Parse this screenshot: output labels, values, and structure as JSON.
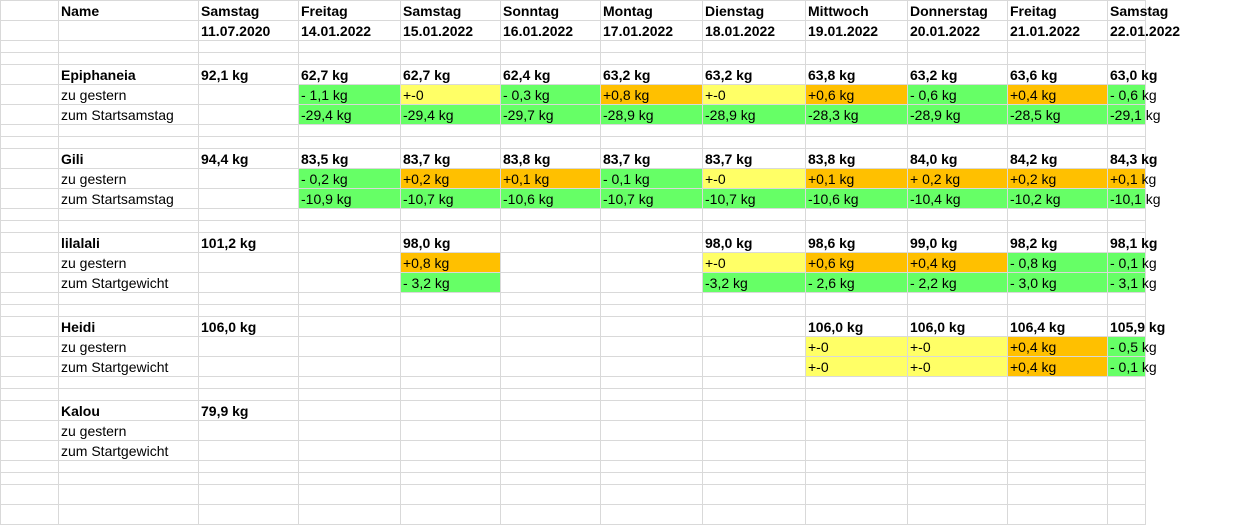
{
  "colors": {
    "green": "#66ff66",
    "yellow": "#ffff66",
    "orange": "#ffc000",
    "grid": "#d9d9d9"
  },
  "header": {
    "name_label": "Name",
    "days": [
      "Samstag",
      "Freitag",
      "Samstag",
      "Sonntag",
      "Montag",
      "Dienstag",
      "Mittwoch",
      "Donnerstag",
      "Freitag",
      "Samstag"
    ],
    "dates": [
      "11.07.2020",
      "14.01.2022",
      "15.01.2022",
      "16.01.2022",
      "17.01.2022",
      "18.01.2022",
      "19.01.2022",
      "20.01.2022",
      "21.01.2022",
      "22.01.2022"
    ]
  },
  "persons": [
    {
      "name": "Epiphaneia",
      "weights": [
        "92,1 kg",
        "62,7 kg",
        "62,7 kg",
        "62,4 kg",
        "63,2 kg",
        "63,2 kg",
        "63,8 kg",
        "63,2 kg",
        "63,6 kg",
        "63,0 kg"
      ],
      "diff_label": "zu gestern",
      "diffs": [
        null,
        {
          "text": "- 1,1 kg",
          "color": "green"
        },
        {
          "text": "+-0",
          "color": "yellow"
        },
        {
          "text": "- 0,3 kg",
          "color": "green"
        },
        {
          "text": "+0,8 kg",
          "color": "orange"
        },
        {
          "text": "+-0",
          "color": "yellow"
        },
        {
          "text": "+0,6 kg",
          "color": "orange"
        },
        {
          "text": "- 0,6 kg",
          "color": "green"
        },
        {
          "text": "+0,4 kg",
          "color": "orange"
        },
        {
          "text": "- 0,6 kg",
          "color": "green"
        }
      ],
      "start_label": "zum Startsamstag",
      "starts": [
        null,
        {
          "text": "-29,4 kg",
          "color": "green"
        },
        {
          "text": "-29,4 kg",
          "color": "green"
        },
        {
          "text": "-29,7 kg",
          "color": "green"
        },
        {
          "text": "-28,9 kg",
          "color": "green"
        },
        {
          "text": "-28,9 kg",
          "color": "green"
        },
        {
          "text": "-28,3 kg",
          "color": "green"
        },
        {
          "text": "-28,9 kg",
          "color": "green"
        },
        {
          "text": "-28,5 kg",
          "color": "green"
        },
        {
          "text": "-29,1 kg",
          "color": "green"
        }
      ]
    },
    {
      "name": "Gili",
      "weights": [
        "94,4 kg",
        "83,5 kg",
        "83,7 kg",
        "83,8 kg",
        "83,7 kg",
        "83,7 kg",
        "83,8 kg",
        "84,0 kg",
        "84,2 kg",
        "84,3 kg"
      ],
      "diff_label": "zu gestern",
      "diffs": [
        null,
        {
          "text": "- 0,2 kg",
          "color": "green"
        },
        {
          "text": "+0,2 kg",
          "color": "orange"
        },
        {
          "text": "+0,1 kg",
          "color": "orange"
        },
        {
          "text": "- 0,1 kg",
          "color": "green"
        },
        {
          "text": "+-0",
          "color": "yellow"
        },
        {
          "text": "+0,1 kg",
          "color": "orange"
        },
        {
          "text": "+ 0,2 kg",
          "color": "orange"
        },
        {
          "text": "+0,2 kg",
          "color": "orange"
        },
        {
          "text": "+0,1 kg",
          "color": "orange"
        }
      ],
      "start_label": "zum Startsamstag",
      "starts": [
        null,
        {
          "text": "-10,9 kg",
          "color": "green"
        },
        {
          "text": "-10,7 kg",
          "color": "green"
        },
        {
          "text": "-10,6 kg",
          "color": "green"
        },
        {
          "text": "-10,7 kg",
          "color": "green"
        },
        {
          "text": "-10,7 kg",
          "color": "green"
        },
        {
          "text": "-10,6 kg",
          "color": "green"
        },
        {
          "text": "-10,4 kg",
          "color": "green"
        },
        {
          "text": "-10,2 kg",
          "color": "green"
        },
        {
          "text": "-10,1 kg",
          "color": "green"
        }
      ]
    },
    {
      "name": "lilalali",
      "weights": [
        "101,2 kg",
        "",
        "98,0 kg",
        "",
        "",
        "98,0 kg",
        "98,6 kg",
        "99,0 kg",
        "98,2 kg",
        "98,1 kg"
      ],
      "diff_label": "zu gestern",
      "diffs": [
        null,
        null,
        {
          "text": "+0,8 kg",
          "color": "orange"
        },
        null,
        null,
        {
          "text": "+-0",
          "color": "yellow"
        },
        {
          "text": "+0,6 kg",
          "color": "orange"
        },
        {
          "text": "+0,4 kg",
          "color": "orange"
        },
        {
          "text": "- 0,8 kg",
          "color": "green"
        },
        {
          "text": "- 0,1 kg",
          "color": "green"
        }
      ],
      "start_label": "zum Startgewicht",
      "starts": [
        null,
        null,
        {
          "text": "- 3,2 kg",
          "color": "green"
        },
        null,
        null,
        {
          "text": "-3,2 kg",
          "color": "green"
        },
        {
          "text": "- 2,6 kg",
          "color": "green"
        },
        {
          "text": "- 2,2 kg",
          "color": "green"
        },
        {
          "text": "- 3,0 kg",
          "color": "green"
        },
        {
          "text": "- 3,1 kg",
          "color": "green"
        }
      ]
    },
    {
      "name": "Heidi",
      "weights": [
        "106,0 kg",
        "",
        "",
        "",
        "",
        "",
        "106,0 kg",
        "106,0 kg",
        "106,4 kg",
        "105,9 kg"
      ],
      "diff_label": "zu gestern",
      "diffs": [
        null,
        null,
        null,
        null,
        null,
        null,
        {
          "text": "+-0",
          "color": "yellow"
        },
        {
          "text": "+-0",
          "color": "yellow"
        },
        {
          "text": "+0,4 kg",
          "color": "orange"
        },
        {
          "text": "- 0,5 kg",
          "color": "green"
        }
      ],
      "start_label": "zum Startgewicht",
      "starts": [
        null,
        null,
        null,
        null,
        null,
        null,
        {
          "text": "+-0",
          "color": "yellow"
        },
        {
          "text": "+-0",
          "color": "yellow"
        },
        {
          "text": "+0,4 kg",
          "color": "orange"
        },
        {
          "text": "- 0,1 kg",
          "color": "green"
        }
      ]
    },
    {
      "name": "Kalou",
      "weights": [
        "79,9 kg",
        "",
        "",
        "",
        "",
        "",
        "",
        "",
        "",
        ""
      ],
      "diff_label": "zu gestern",
      "diffs": [
        null,
        null,
        null,
        null,
        null,
        null,
        null,
        null,
        null,
        null
      ],
      "start_label": "zum Startgewicht",
      "starts": [
        null,
        null,
        null,
        null,
        null,
        null,
        null,
        null,
        null,
        null
      ]
    }
  ]
}
